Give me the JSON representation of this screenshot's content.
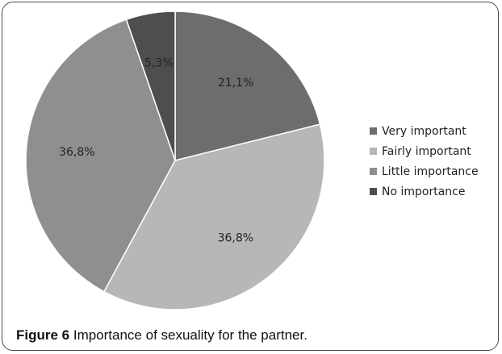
{
  "chart_data": {
    "type": "pie",
    "categories": [
      "Very important",
      "Fairly important",
      "Little importance",
      "No importance"
    ],
    "values": [
      21.1,
      36.8,
      36.8,
      5.3
    ],
    "value_labels": [
      "21,1%",
      "36,8%",
      "36,8%",
      "5,3%"
    ],
    "colors": [
      "#6d6d6d",
      "#b7b7b7",
      "#8f8f8f",
      "#4e4e4e"
    ],
    "start_angle_deg": 0,
    "direction": "clockwise",
    "legend": {
      "position": "right",
      "entries": [
        "Very important",
        "Fairly important",
        "Little importance",
        "No importance"
      ]
    }
  },
  "caption": {
    "label": "Figure 6",
    "text": " Importance of sexuality for the partner."
  }
}
